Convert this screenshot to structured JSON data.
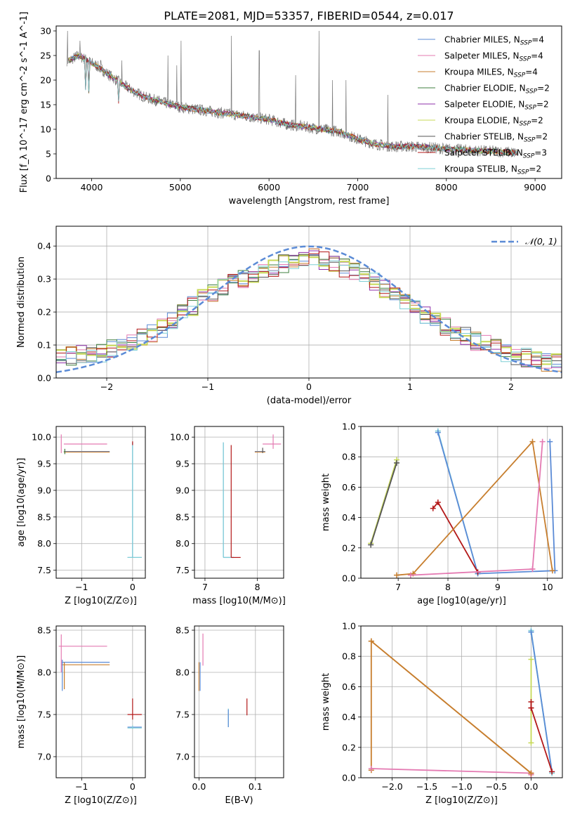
{
  "figure": {
    "title": "PLATE=2081, MJD=53357, FIBERID=0544, z=0.017"
  },
  "series": [
    {
      "name": "Chabrier MILES",
      "nssp": "4",
      "color": "#5b8bd6"
    },
    {
      "name": "Salpeter MILES",
      "nssp": "4",
      "color": "#e47ab2"
    },
    {
      "name": "Kroupa MILES",
      "nssp": "4",
      "color": "#c77e2e"
    },
    {
      "name": "Chabrier ELODIE",
      "nssp": "2",
      "color": "#3f7f3f"
    },
    {
      "name": "Salpeter ELODIE",
      "nssp": "2",
      "color": "#8e2fa8"
    },
    {
      "name": "Kroupa ELODIE",
      "nssp": "2",
      "color": "#c7d957"
    },
    {
      "name": "Chabrier STELIB",
      "nssp": "2",
      "color": "#555555"
    },
    {
      "name": "Salpeter STELIB",
      "nssp": "3",
      "color": "#b31818"
    },
    {
      "name": "Kroupa STELIB",
      "nssp": "2",
      "color": "#7ecfd6"
    }
  ],
  "chart_data": [
    {
      "id": "spectrum",
      "type": "line",
      "xlabel": "wavelength [Angstrom, rest frame]",
      "ylabel": "Flux [f_λ 10^-17 erg cm^-2 s^-1 A^-1]",
      "xlim": [
        3600,
        9300
      ],
      "ylim": [
        0,
        31
      ],
      "xticks": [
        4000,
        5000,
        6000,
        7000,
        8000,
        9000
      ],
      "yticks": [
        0,
        5,
        10,
        15,
        20,
        25,
        30
      ],
      "grid": false,
      "legend": "top-right",
      "continuum": {
        "x": [
          3750,
          3850,
          3950,
          4050,
          4200,
          4400,
          4600,
          4800,
          5000,
          5200,
          5400,
          5600,
          5800,
          6000,
          6200,
          6400,
          6600,
          6800,
          7000,
          7200,
          7400,
          7600,
          7800,
          8000,
          8200,
          8400,
          8600,
          8800
        ],
        "y": [
          24,
          25,
          24,
          23,
          21,
          18.5,
          16.5,
          15.5,
          14.5,
          14,
          13.5,
          13,
          12.5,
          12,
          11,
          10.5,
          10,
          9.5,
          8,
          7,
          6.5,
          6.5,
          6.3,
          6,
          5.8,
          5.6,
          5.5,
          5.2
        ]
      },
      "emission_lines": [
        {
          "x": 3727,
          "peak": 30
        },
        {
          "x": 3869,
          "peak": 28
        },
        {
          "x": 4102,
          "peak": 24
        },
        {
          "x": 4340,
          "peak": 24
        },
        {
          "x": 4861,
          "peak": 25
        },
        {
          "x": 4959,
          "peak": 23
        },
        {
          "x": 5007,
          "peak": 28
        },
        {
          "x": 5577,
          "peak": 29
        },
        {
          "x": 5890,
          "peak": 26
        },
        {
          "x": 6300,
          "peak": 21
        },
        {
          "x": 6563,
          "peak": 30
        },
        {
          "x": 6717,
          "peak": 20
        },
        {
          "x": 6867,
          "peak": 20
        },
        {
          "x": 7340,
          "peak": 17
        }
      ]
    },
    {
      "id": "residuals",
      "type": "line",
      "xlabel": "(data-model)/error",
      "ylabel": "Normed distribution",
      "xlim": [
        -2.5,
        2.5
      ],
      "ylim": [
        0,
        0.46
      ],
      "xticks": [
        -2,
        -1,
        0,
        1,
        2
      ],
      "yticks": [
        0.0,
        0.1,
        0.2,
        0.3,
        0.4
      ],
      "grid": true,
      "legend": "top-right",
      "gaussian": {
        "name": "𝒩(0, 1)",
        "mean": 0,
        "sigma": 1,
        "color": "#5b8bd6"
      },
      "histogram_shape": {
        "bin_width": 0.1,
        "x": [
          -2.5,
          -2.0,
          -1.5,
          -1.0,
          -0.5,
          0.0,
          0.5,
          1.0,
          1.5,
          2.0,
          2.5
        ],
        "y": [
          0.06,
          0.08,
          0.14,
          0.25,
          0.32,
          0.37,
          0.32,
          0.22,
          0.13,
          0.07,
          0.04
        ]
      }
    },
    {
      "id": "age_vs_Z",
      "type": "scatter",
      "xlabel": "Z [log10(Z/Z⊙)]",
      "ylabel": "age  [log10(age/yr)]",
      "xlim": [
        -1.5,
        0.25
      ],
      "ylim": [
        7.35,
        10.2
      ],
      "xticks": [
        -1,
        0
      ],
      "yticks": [
        7.5,
        8.0,
        8.5,
        9.0,
        9.5,
        10.0
      ],
      "grid": true,
      "h_segments": [
        {
          "x1": -1.35,
          "x2": -0.5,
          "y": 9.87,
          "series": 1
        },
        {
          "x1": -1.35,
          "x2": -0.45,
          "y": 9.73,
          "series": 0
        },
        {
          "x1": -1.35,
          "x2": -0.45,
          "y": 9.72,
          "series": 2
        },
        {
          "x1": -0.1,
          "x2": 0.18,
          "y": 7.74,
          "series": 0
        },
        {
          "x1": -0.1,
          "x2": 0.18,
          "y": 7.74,
          "series": 8
        }
      ],
      "v_segments": [
        {
          "x": -1.4,
          "y1": 9.7,
          "y2": 10.05,
          "series": 1
        },
        {
          "x": -1.33,
          "y1": 9.68,
          "y2": 9.78,
          "series": 3
        },
        {
          "x": 0.0,
          "y1": 7.74,
          "y2": 9.9,
          "series": 0
        },
        {
          "x": 0.0,
          "y1": 7.74,
          "y2": 9.9,
          "series": 8
        },
        {
          "x": 0.0,
          "y1": 9.85,
          "y2": 9.92,
          "series": 7
        }
      ]
    },
    {
      "id": "age_vs_mass",
      "type": "scatter",
      "xlabel": "mass [log10(M/M⊙)]",
      "ylabel": "",
      "xlim": [
        6.8,
        8.5
      ],
      "ylim": [
        7.35,
        10.2
      ],
      "xticks": [
        7,
        8
      ],
      "yticks": [
        7.5,
        8.0,
        8.5,
        9.0,
        9.5,
        10.0
      ],
      "grid": true,
      "h_segments": [
        {
          "x1": 7.35,
          "x2": 7.55,
          "y": 7.74,
          "series": 0
        },
        {
          "x1": 7.35,
          "x2": 7.55,
          "y": 7.74,
          "series": 8
        },
        {
          "x1": 7.5,
          "x2": 7.68,
          "y": 7.74,
          "series": 7
        },
        {
          "x1": 7.95,
          "x2": 8.15,
          "y": 9.73,
          "series": 0
        },
        {
          "x1": 7.95,
          "x2": 8.15,
          "y": 9.72,
          "series": 2
        },
        {
          "x1": 8.1,
          "x2": 8.45,
          "y": 9.87,
          "series": 1
        }
      ],
      "v_segments": [
        {
          "x": 7.35,
          "y1": 7.74,
          "y2": 9.9,
          "series": 0
        },
        {
          "x": 7.35,
          "y1": 7.74,
          "y2": 9.9,
          "series": 8
        },
        {
          "x": 7.5,
          "y1": 7.74,
          "y2": 9.85,
          "series": 7
        },
        {
          "x": 8.1,
          "y1": 9.7,
          "y2": 9.8,
          "series": 6
        },
        {
          "x": 8.3,
          "y1": 9.78,
          "y2": 10.05,
          "series": 1
        }
      ]
    },
    {
      "id": "weight_vs_age",
      "type": "line",
      "xlabel": "age  [log10(age/yr)]",
      "ylabel": "mass weight",
      "xlim": [
        6.25,
        10.3
      ],
      "ylim": [
        0,
        1.0
      ],
      "xticks": [
        7,
        8,
        9,
        10
      ],
      "yticks": [
        0.0,
        0.2,
        0.4,
        0.6,
        0.8,
        1.0
      ],
      "grid": true,
      "lines": [
        {
          "series": 5,
          "x": [
            6.45,
            6.97
          ],
          "y": [
            0.23,
            0.78
          ]
        },
        {
          "series": 6,
          "x": [
            6.45,
            6.97
          ],
          "y": [
            0.22,
            0.76
          ]
        },
        {
          "series": 8,
          "x": [
            7.8,
            8.6
          ],
          "y": [
            0.97,
            0.03
          ]
        },
        {
          "series": 0,
          "x": [
            7.8,
            8.6,
            10.15
          ],
          "y": [
            0.96,
            0.03,
            0.05
          ]
        },
        {
          "series": 0,
          "x": [
            10.15,
            10.05
          ],
          "y": [
            0.05,
            0.9
          ]
        },
        {
          "series": 7,
          "x": [
            7.7,
            7.8,
            8.6
          ],
          "y": [
            0.46,
            0.5,
            0.04
          ]
        },
        {
          "series": 2,
          "x": [
            6.97,
            7.3,
            9.7,
            10.1
          ],
          "y": [
            0.02,
            0.03,
            0.9,
            0.05
          ]
        },
        {
          "series": 1,
          "x": [
            7.25,
            9.7,
            9.9,
            9.7
          ],
          "y": [
            0.02,
            0.06,
            0.9,
            0.06
          ]
        }
      ]
    },
    {
      "id": "mass_vs_Z",
      "type": "scatter",
      "xlabel": "Z [log10(Z/Z⊙)]",
      "ylabel": "mass [log10(M/M⊙)]",
      "xlim": [
        -1.5,
        0.25
      ],
      "ylim": [
        6.75,
        8.55
      ],
      "xticks": [
        -1,
        0
      ],
      "yticks": [
        7.0,
        7.5,
        8.0,
        8.5
      ],
      "grid": true,
      "h_segments": [
        {
          "x1": -1.45,
          "x2": -0.5,
          "y": 8.31,
          "series": 1
        },
        {
          "x1": -1.4,
          "x2": -0.45,
          "y": 8.12,
          "series": 0
        },
        {
          "x1": -1.4,
          "x2": -0.45,
          "y": 8.09,
          "series": 2
        },
        {
          "x1": -0.1,
          "x2": 0.18,
          "y": 7.5,
          "series": 7
        },
        {
          "x1": -0.1,
          "x2": 0.18,
          "y": 7.35,
          "series": 0
        },
        {
          "x1": -0.1,
          "x2": 0.18,
          "y": 7.34,
          "series": 8
        }
      ],
      "v_segments": [
        {
          "x": -1.4,
          "y1": 8.0,
          "y2": 8.45,
          "series": 1
        },
        {
          "x": -1.38,
          "y1": 7.78,
          "y2": 8.15,
          "series": 0
        },
        {
          "x": -1.34,
          "y1": 7.8,
          "y2": 8.12,
          "series": 2
        },
        {
          "x": 0.0,
          "y1": 7.44,
          "y2": 7.69,
          "series": 7
        },
        {
          "x": 0.0,
          "y1": 7.33,
          "y2": 7.37,
          "series": 8
        }
      ]
    },
    {
      "id": "mass_vs_ebv",
      "type": "scatter",
      "xlabel": "E(B-V)",
      "ylabel": "",
      "xlim": [
        -0.008,
        0.15
      ],
      "ylim": [
        6.75,
        8.55
      ],
      "xticks": [
        0.0,
        0.1
      ],
      "yticks": [
        7.0,
        7.5,
        8.0,
        8.5
      ],
      "grid": true,
      "v_segments": [
        {
          "x": 0.0,
          "y1": 7.78,
          "y2": 8.12,
          "series": 2
        },
        {
          "x": 0.002,
          "y1": 7.78,
          "y2": 8.12,
          "series": 0
        },
        {
          "x": 0.007,
          "y1": 8.08,
          "y2": 8.46,
          "series": 1
        },
        {
          "x": 0.052,
          "y1": 7.35,
          "y2": 7.57,
          "series": 8
        },
        {
          "x": 0.052,
          "y1": 7.35,
          "y2": 7.56,
          "series": 0
        },
        {
          "x": 0.085,
          "y1": 7.49,
          "y2": 7.69,
          "series": 7
        }
      ]
    },
    {
      "id": "weight_vs_Z",
      "type": "line",
      "xlabel": "Z [log10(Z/Z⊙)]",
      "ylabel": "mass weight",
      "xlim": [
        -2.45,
        0.45
      ],
      "ylim": [
        0,
        1.0
      ],
      "xticks": [
        -2.0,
        -1.5,
        -1.0,
        -0.5,
        0.0
      ],
      "yticks": [
        0.0,
        0.2,
        0.4,
        0.6,
        0.8,
        1.0
      ],
      "grid": true,
      "lines": [
        {
          "series": 5,
          "x": [
            0.0,
            0.0
          ],
          "y": [
            0.23,
            0.78
          ]
        },
        {
          "series": 8,
          "x": [
            0.0,
            0.3,
            0.0
          ],
          "y": [
            0.97,
            0.03,
            0.96
          ]
        },
        {
          "series": 0,
          "x": [
            0.0,
            0.3
          ],
          "y": [
            0.96,
            0.04
          ]
        },
        {
          "series": 7,
          "x": [
            0.0,
            0.3
          ],
          "y": [
            0.46,
            0.04
          ]
        },
        {
          "series": 7,
          "x": [
            0.0,
            0.0
          ],
          "y": [
            0.46,
            0.5
          ]
        },
        {
          "series": 2,
          "x": [
            -2.3,
            -2.3,
            0.0,
            0.0
          ],
          "y": [
            0.05,
            0.9,
            0.03,
            0.02
          ]
        },
        {
          "series": 1,
          "x": [
            -2.3,
            0.0,
            0.0
          ],
          "y": [
            0.06,
            0.03,
            0.02
          ]
        },
        {
          "series": 2,
          "x": [
            -2.3,
            0.0
          ],
          "y": [
            0.9,
            0.03
          ]
        }
      ]
    }
  ]
}
